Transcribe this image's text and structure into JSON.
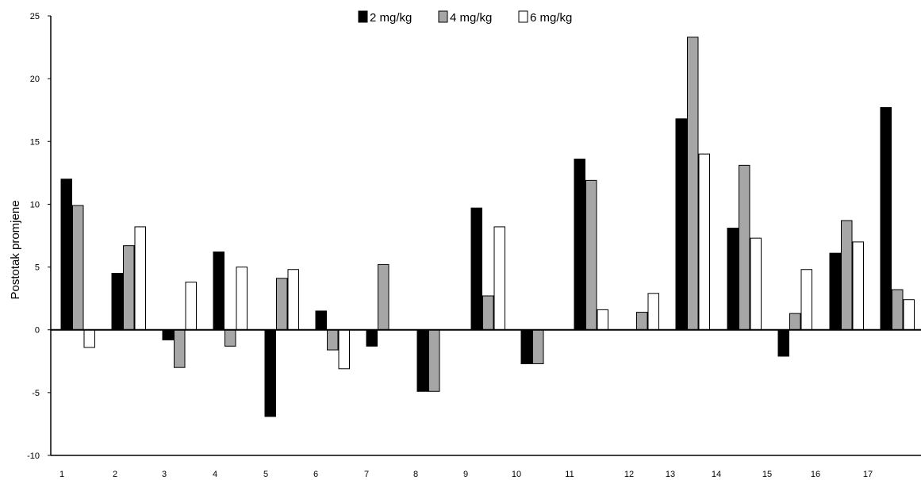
{
  "chart_data": {
    "type": "bar",
    "title": "",
    "xlabel": "",
    "ylabel": "Postotak promjene",
    "ylim": [
      -10,
      25
    ],
    "yticks": [
      -10,
      -5,
      0,
      5,
      10,
      15,
      20,
      25
    ],
    "grid": false,
    "legend_position": "top-center",
    "x_tick_labels": [
      "1",
      "2",
      "3",
      "4",
      "5",
      "6",
      "7",
      "8",
      "9",
      "10",
      "11",
      "12",
      "13",
      "14",
      "15",
      "16",
      "17"
    ],
    "categories": [
      "1",
      "2",
      "3",
      "4",
      "5",
      "6",
      "7",
      "8",
      "9",
      "10",
      "11",
      "12",
      "13",
      "14",
      "15",
      "16",
      "17"
    ],
    "series": [
      {
        "name": "2 mg/kg",
        "color": "#000000",
        "values": [
          12.0,
          4.5,
          -0.8,
          6.2,
          -6.9,
          1.5,
          -1.3,
          -4.9,
          9.7,
          -2.7,
          13.6,
          0,
          16.8,
          8.1,
          -2.1,
          6.1,
          17.7
        ]
      },
      {
        "name": "4 mg/kg",
        "color": "#a6a6a6",
        "values": [
          9.9,
          6.7,
          -3.0,
          -1.3,
          4.1,
          -1.6,
          5.2,
          -4.9,
          2.7,
          -2.7,
          11.9,
          1.4,
          23.3,
          13.1,
          1.3,
          8.7,
          3.2
        ]
      },
      {
        "name": "6 mg/kg",
        "color": "#ffffff",
        "values": [
          -1.4,
          8.2,
          3.8,
          5.0,
          4.8,
          -3.1,
          0,
          0,
          8.2,
          0,
          1.6,
          2.9,
          14.0,
          7.3,
          4.8,
          7.0,
          2.4
        ]
      }
    ]
  }
}
